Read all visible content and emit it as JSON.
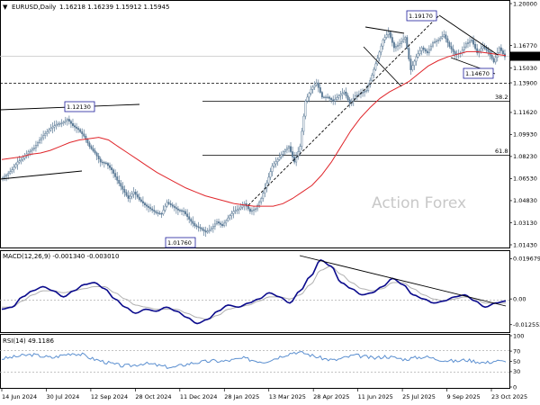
{
  "header": {
    "symbol": "EURUSD,Daily",
    "ohlc": "1.16218 1.16239 1.15912 1.15945",
    "marker": "▼"
  },
  "watermark": "Action Forex",
  "colors": {
    "candle": "#5b7a96",
    "ma": "#e0262b",
    "trendline": "#000000",
    "macd": "#0a0a8c",
    "signal": "#b0b0b0",
    "rsi": "#5b8fd0",
    "grid_dash": "#b0b0b0",
    "label_box": "#1c1c9c"
  },
  "chart_data": [
    {
      "type": "candlestick",
      "title": "EURUSD,Daily",
      "y_ticks": [
        "1.20000",
        "1.16770",
        "1.15945",
        "1.15030",
        "1.13900",
        "1.11620",
        "1.09930",
        "1.08230",
        "1.06530",
        "1.04830",
        "1.03130",
        "1.01430"
      ],
      "ylim": [
        1.0143,
        1.2
      ],
      "current_price": 1.15945,
      "x_ticks": [
        "14 Jun 2024",
        "30 Jul 2024",
        "12 Sep 2024",
        "28 Oct 2024",
        "11 Dec 2024",
        "28 Jan 2025",
        "13 Mar 2025",
        "28 Apr 2025",
        "11 Jun 2025",
        "25 Jul 2025",
        "9 Sep 2025",
        "23 Oct 2025"
      ],
      "labels": {
        "high_2024": "1.12130",
        "low_2025": "1.01760",
        "high_2025": "1.19170",
        "recent_low": "1.14670",
        "support": "1.13900",
        "fib_38": "38.2",
        "fib_61": "61.8"
      },
      "closes": [
        1.068,
        1.072,
        1.078,
        1.081,
        1.086,
        1.089,
        1.095,
        1.1,
        1.104,
        1.107,
        1.108,
        1.111,
        1.106,
        1.103,
        1.098,
        1.09,
        1.085,
        1.078,
        1.077,
        1.072,
        1.064,
        1.057,
        1.05,
        1.055,
        1.049,
        1.045,
        1.042,
        1.039,
        1.038,
        1.047,
        1.044,
        1.041,
        1.04,
        1.034,
        1.029,
        1.027,
        1.024,
        1.027,
        1.032,
        1.029,
        1.035,
        1.04,
        1.042,
        1.046,
        1.04,
        1.042,
        1.05,
        1.062,
        1.075,
        1.08,
        1.086,
        1.09,
        1.078,
        1.09,
        1.125,
        1.134,
        1.139,
        1.128,
        1.128,
        1.125,
        1.129,
        1.132,
        1.123,
        1.129,
        1.131,
        1.133,
        1.145,
        1.158,
        1.172,
        1.178,
        1.166,
        1.169,
        1.174,
        1.149,
        1.159,
        1.166,
        1.162,
        1.17,
        1.172,
        1.176,
        1.167,
        1.161,
        1.162,
        1.169,
        1.172,
        1.162,
        1.167,
        1.163,
        1.155,
        1.166,
        1.159
      ],
      "ma_points": [
        1.08,
        1.081,
        1.082,
        1.084,
        1.085,
        1.087,
        1.09,
        1.093,
        1.095,
        1.096,
        1.097,
        1.095,
        1.09,
        1.085,
        1.08,
        1.075,
        1.07,
        1.066,
        1.062,
        1.058,
        1.055,
        1.052,
        1.05,
        1.048,
        1.046,
        1.045,
        1.044,
        1.044,
        1.044,
        1.046,
        1.05,
        1.055,
        1.06,
        1.068,
        1.078,
        1.09,
        1.102,
        1.112,
        1.12,
        1.127,
        1.132,
        1.136,
        1.14,
        1.146,
        1.152,
        1.156,
        1.159,
        1.161,
        1.163,
        1.163,
        1.162,
        1.161,
        1.16
      ]
    },
    {
      "type": "line",
      "title": "MACD(12,26,9) -0.001340 -0.003010",
      "y_ticks": [
        "0.019679",
        "0.00",
        "-0.012552"
      ],
      "ylim": [
        -0.0153,
        0.0216
      ],
      "series": [
        {
          "name": "MACD",
          "values": [
            -0.005,
            -0.004,
            0.001,
            0.004,
            0.006,
            0.004,
            0.001,
            0.004,
            0.007,
            0.008,
            0.005,
            0.0,
            -0.004,
            -0.007,
            -0.005,
            -0.006,
            -0.004,
            -0.006,
            -0.009,
            -0.012,
            -0.01,
            -0.006,
            -0.003,
            -0.004,
            -0.002,
            0.0,
            0.003,
            0.001,
            -0.002,
            0.004,
            0.011,
            0.019,
            0.016,
            0.008,
            0.005,
            0.002,
            0.003,
            0.006,
            0.01,
            0.007,
            0.002,
            0.0,
            -0.002,
            -0.001,
            0.001,
            0.002,
            -0.001,
            -0.004,
            -0.002,
            -0.001
          ]
        },
        {
          "name": "Signal",
          "values": [
            -0.004,
            -0.004,
            -0.001,
            0.002,
            0.004,
            0.004,
            0.003,
            0.004,
            0.005,
            0.006,
            0.006,
            0.003,
            0.0,
            -0.003,
            -0.004,
            -0.005,
            -0.005,
            -0.005,
            -0.007,
            -0.009,
            -0.01,
            -0.008,
            -0.005,
            -0.004,
            -0.003,
            -0.001,
            0.001,
            0.001,
            0.0,
            0.002,
            0.007,
            0.014,
            0.016,
            0.012,
            0.008,
            0.005,
            0.004,
            0.005,
            0.008,
            0.008,
            0.005,
            0.002,
            0.0,
            -0.001,
            0.0,
            0.001,
            0.0,
            -0.002,
            -0.002,
            -0.002
          ]
        }
      ]
    },
    {
      "type": "line",
      "title": "RSI(14) 49.1186",
      "y_ticks": [
        "100",
        "70",
        "50",
        "30",
        "0"
      ],
      "ylim": [
        0,
        100
      ],
      "series": [
        {
          "name": "RSI",
          "values": [
            55,
            58,
            61,
            63,
            60,
            57,
            62,
            66,
            63,
            55,
            50,
            45,
            41,
            42,
            46,
            44,
            40,
            38,
            43,
            47,
            49,
            51,
            50,
            53,
            56,
            52,
            49,
            55,
            62,
            68,
            66,
            60,
            55,
            52,
            57,
            62,
            59,
            56,
            60,
            57,
            54,
            57,
            59,
            55,
            52,
            50,
            53,
            50,
            47,
            51,
            49
          ]
        }
      ]
    }
  ]
}
